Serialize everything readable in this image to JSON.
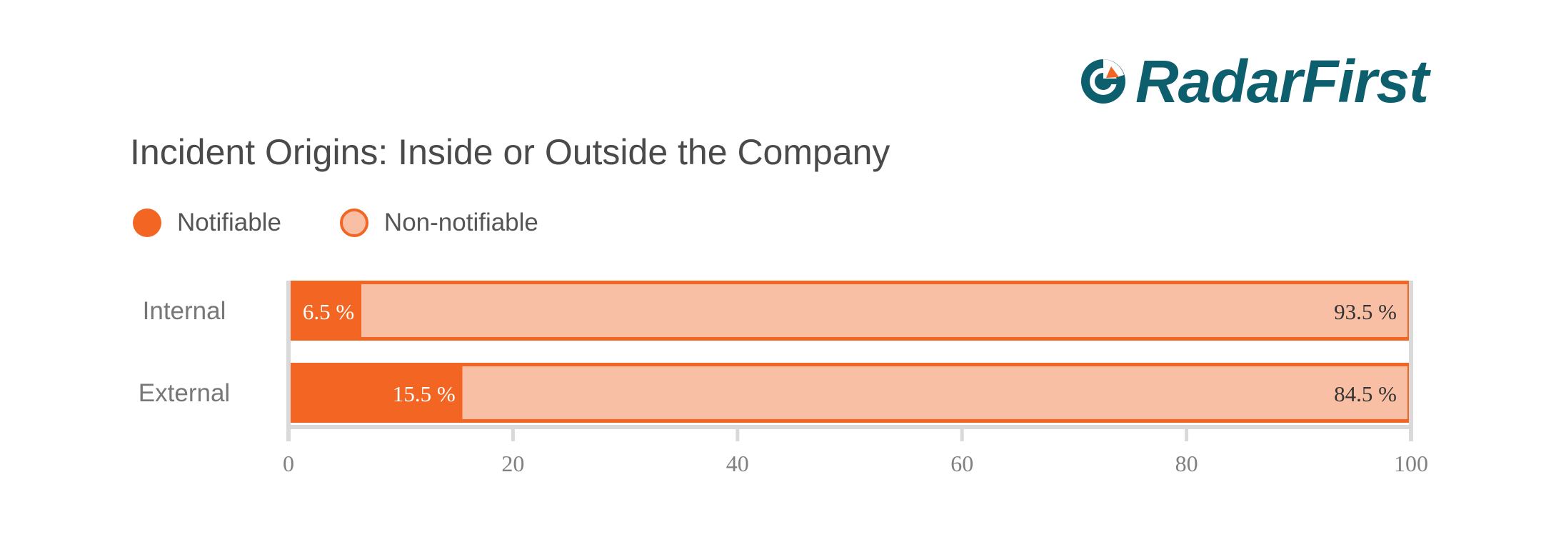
{
  "logo": {
    "text": "RadarFirst"
  },
  "chart_data": {
    "type": "bar",
    "orientation": "horizontal",
    "stacked": true,
    "title": "Incident Origins: Inside or Outside the Company",
    "categories": [
      "Internal",
      "External"
    ],
    "series": [
      {
        "name": "Notifiable",
        "values": [
          6.5,
          15.5
        ],
        "labels": [
          "6.5 %",
          "15.5 %"
        ],
        "color": "#f26522",
        "text_color": "#ffffff"
      },
      {
        "name": "Non-notifiable",
        "values": [
          93.5,
          84.5
        ],
        "labels": [
          "93.5 %",
          "84.5 %"
        ],
        "color": "#f9bfa5",
        "text_color": "#333333"
      }
    ],
    "xlim": [
      0,
      100
    ],
    "xticks": [
      "0",
      "20",
      "40",
      "60",
      "80",
      "100"
    ],
    "xtick_values": [
      0,
      20,
      40,
      60,
      80,
      100
    ],
    "xlabel": "",
    "ylabel": "",
    "grid": false,
    "legend_position": "top-left"
  },
  "colors": {
    "brand": "#0d5f6e",
    "accent": "#f26522",
    "accent_light": "#f9bfa5",
    "axis": "#d9d9d9"
  }
}
